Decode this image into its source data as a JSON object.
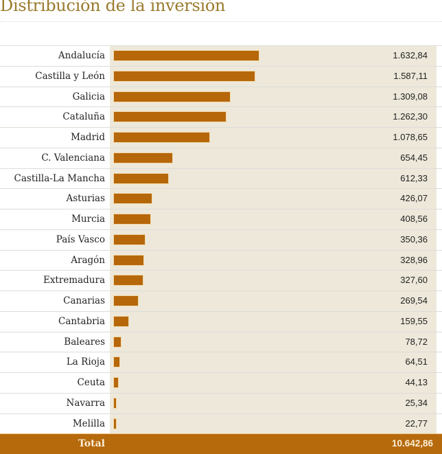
{
  "title": "Distribución de la inversión",
  "colors": {
    "bar": "#b5670a",
    "track": "#ede8da",
    "total_bg": "#b66a0c",
    "title": "#9a7a2e"
  },
  "total": {
    "label": "Total",
    "value": "10.642,86"
  },
  "rows": [
    {
      "label": "Andalucía",
      "value": "1.632,84",
      "num": 1632.84
    },
    {
      "label": "Castilla y León",
      "value": "1.587,11",
      "num": 1587.11
    },
    {
      "label": "Galicia",
      "value": "1.309,08",
      "num": 1309.08
    },
    {
      "label": "Cataluña",
      "value": "1.262,30",
      "num": 1262.3
    },
    {
      "label": "Madrid",
      "value": "1.078,65",
      "num": 1078.65
    },
    {
      "label": "C. Valenciana",
      "value": "654,45",
      "num": 654.45
    },
    {
      "label": "Castilla-La Mancha",
      "value": "612,33",
      "num": 612.33
    },
    {
      "label": "Asturias",
      "value": "426,07",
      "num": 426.07
    },
    {
      "label": "Murcia",
      "value": "408,56",
      "num": 408.56
    },
    {
      "label": "País Vasco",
      "value": "350,36",
      "num": 350.36
    },
    {
      "label": "Aragón",
      "value": "328,96",
      "num": 328.96
    },
    {
      "label": "Extremadura",
      "value": "327,60",
      "num": 327.6
    },
    {
      "label": "Canarias",
      "value": "269,54",
      "num": 269.54
    },
    {
      "label": "Cantabria",
      "value": "159,55",
      "num": 159.55
    },
    {
      "label": "Baleares",
      "value": "78,72",
      "num": 78.72
    },
    {
      "label": "La Rioja",
      "value": "64,51",
      "num": 64.51
    },
    {
      "label": "Ceuta",
      "value": "44,13",
      "num": 44.13
    },
    {
      "label": "Navarra",
      "value": "25,34",
      "num": 25.34
    },
    {
      "label": "Melilla",
      "value": "22,77",
      "num": 22.77
    }
  ],
  "chart_data": {
    "type": "bar",
    "orientation": "horizontal",
    "title": "Distribución de la inversión",
    "xlabel": "",
    "ylabel": "",
    "grid": false,
    "legend": null,
    "categories": [
      "Andalucía",
      "Castilla y León",
      "Galicia",
      "Cataluña",
      "Madrid",
      "C. Valenciana",
      "Castilla-La Mancha",
      "Asturias",
      "Murcia",
      "País Vasco",
      "Aragón",
      "Extremadura",
      "Canarias",
      "Cantabria",
      "Baleares",
      "La Rioja",
      "Ceuta",
      "Navarra",
      "Melilla"
    ],
    "values": [
      1632.84,
      1587.11,
      1309.08,
      1262.3,
      1078.65,
      654.45,
      612.33,
      426.07,
      408.56,
      350.36,
      328.96,
      327.6,
      269.54,
      159.55,
      78.72,
      64.51,
      44.13,
      25.34,
      22.77
    ],
    "total": 10642.86
  }
}
